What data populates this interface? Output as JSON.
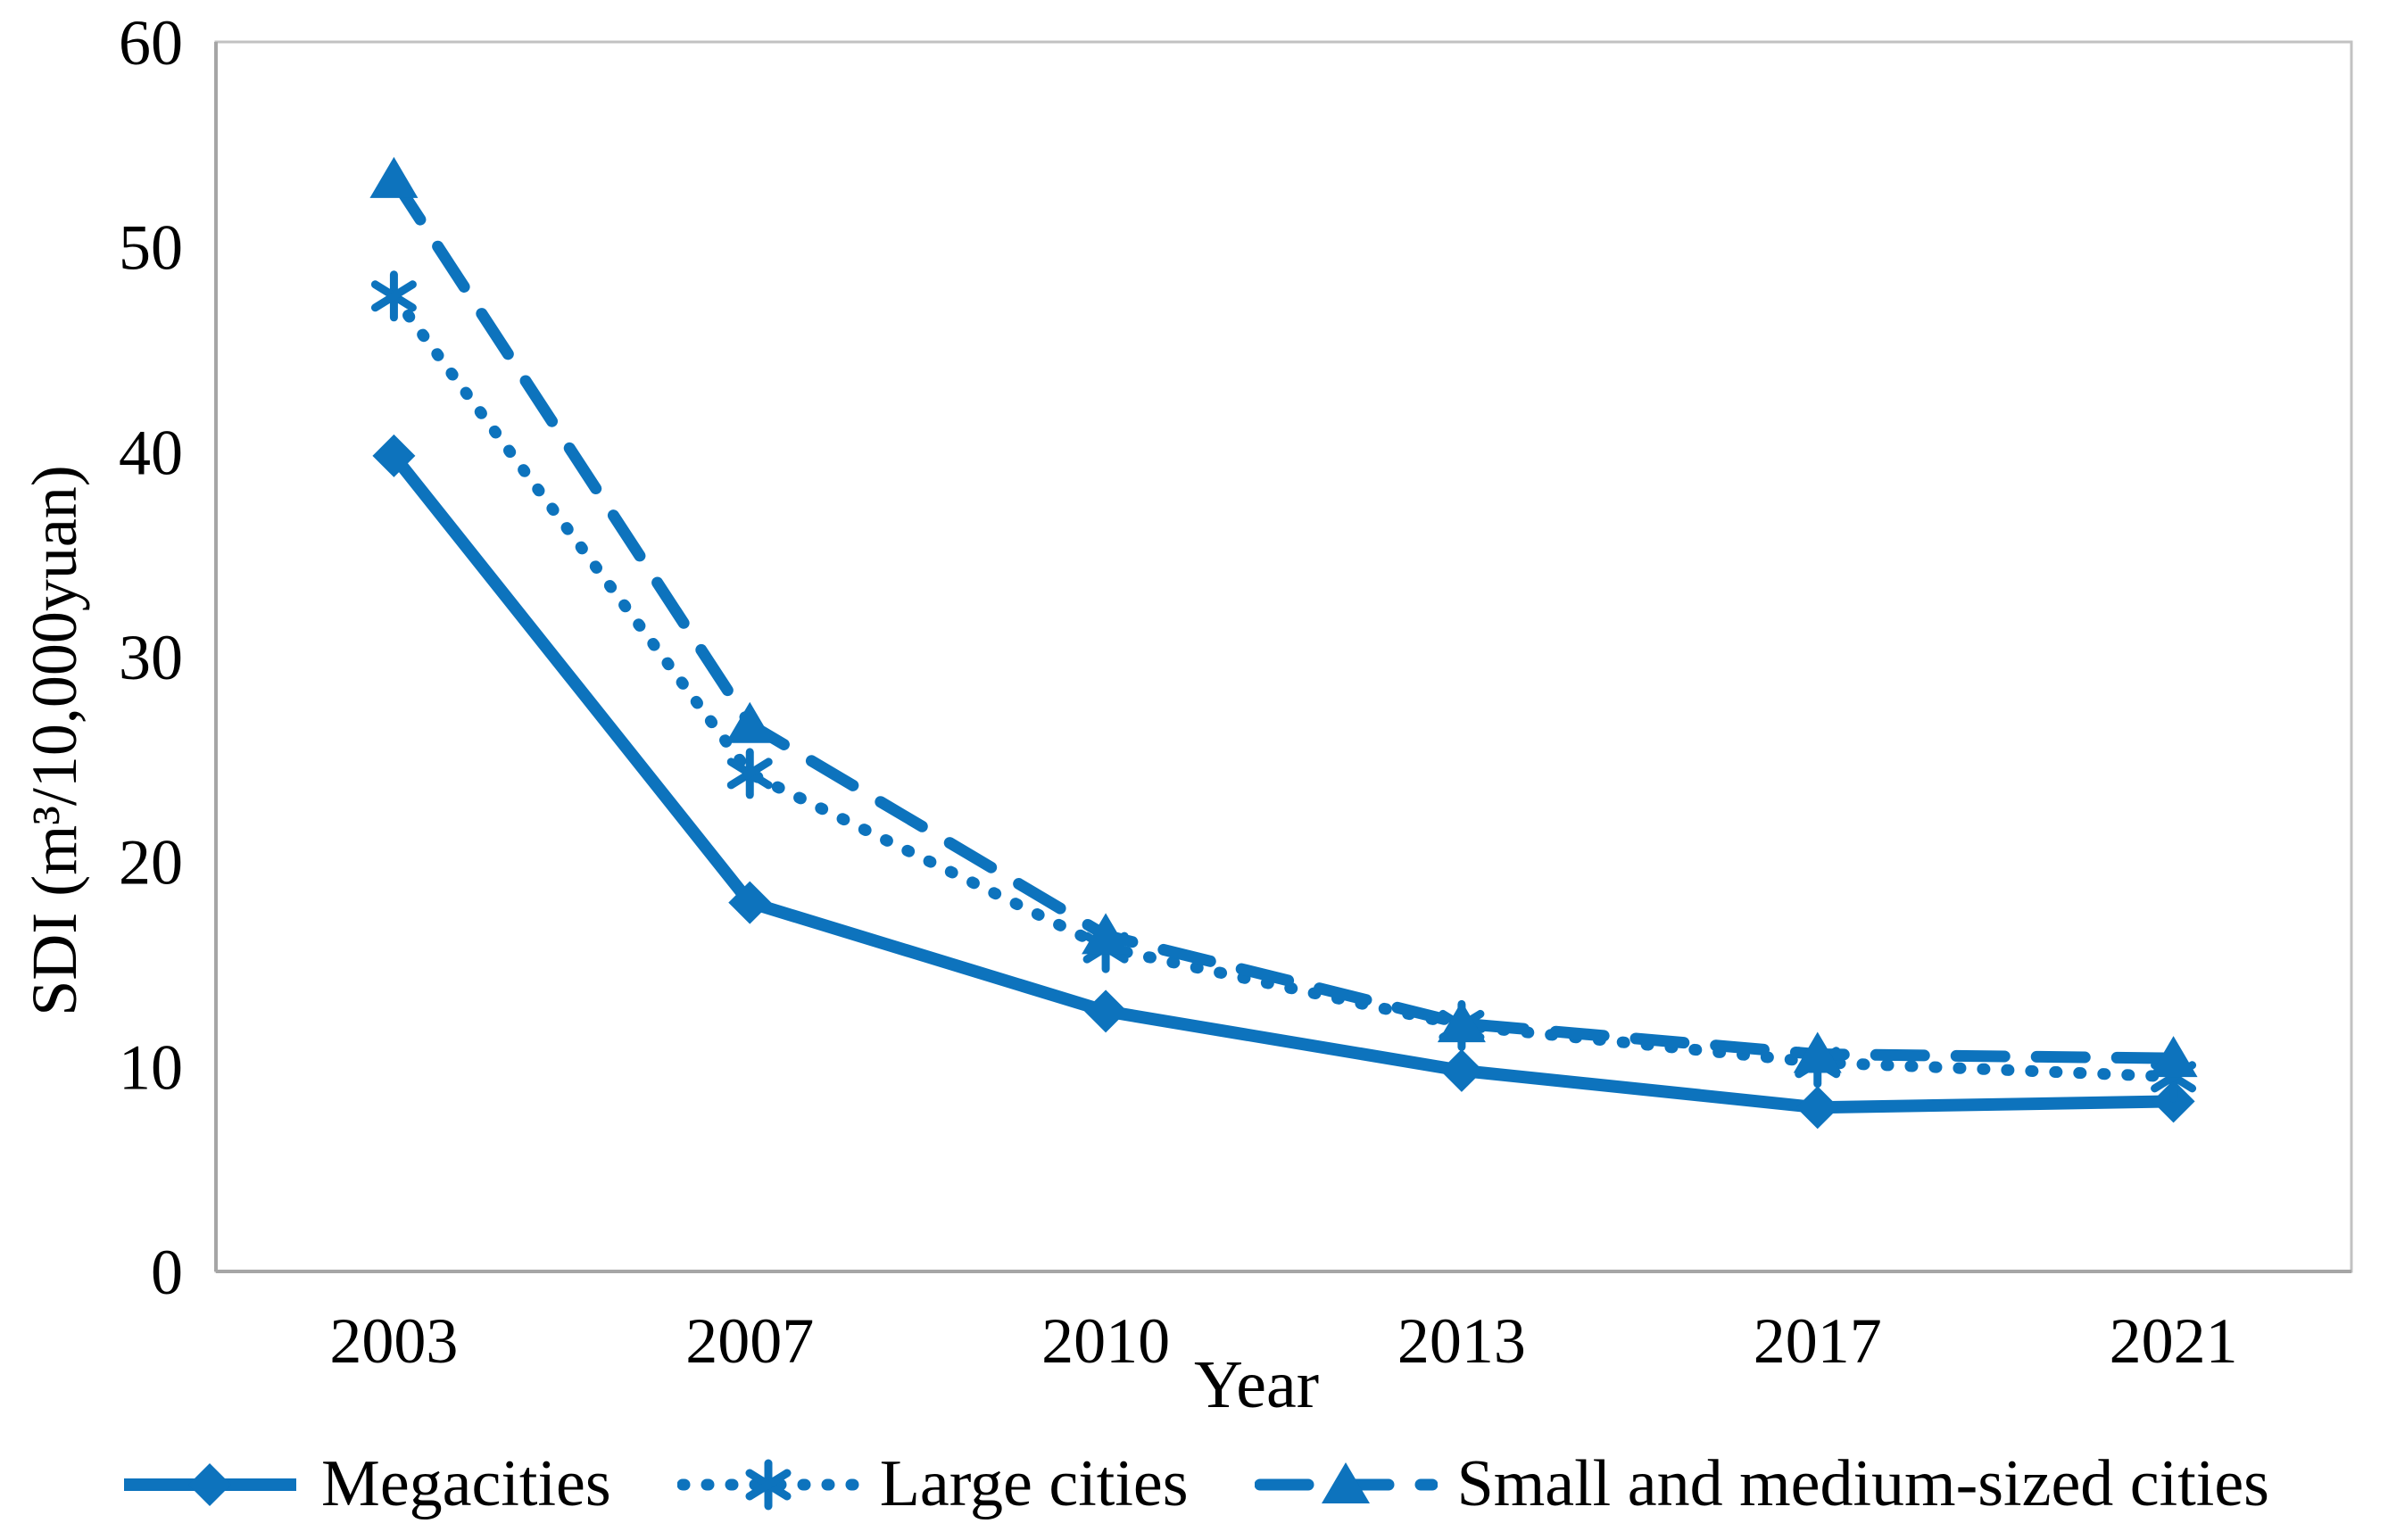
{
  "chart_data": {
    "type": "line",
    "title": "",
    "xlabel": "Year",
    "ylabel": "SDI (m³/10,000yuan)",
    "categories": [
      "2003",
      "2007",
      "2010",
      "2013",
      "2017",
      "2021"
    ],
    "series": [
      {
        "name": "Megacities",
        "marker": "diamond",
        "line_style": "solid",
        "values": [
          39.8,
          18.0,
          12.7,
          9.8,
          8.0,
          8.3
        ]
      },
      {
        "name": "Large cities",
        "marker": "asterisk",
        "line_style": "dotted",
        "values": [
          47.6,
          24.3,
          15.8,
          12.0,
          10.2,
          9.5
        ]
      },
      {
        "name": "Small and medium-sized cities",
        "marker": "triangle",
        "line_style": "dashed",
        "values": [
          53.3,
          26.7,
          16.4,
          12.1,
          10.6,
          10.4
        ]
      }
    ],
    "ylim": [
      0,
      60
    ],
    "ytick_step": 10,
    "grid": false,
    "legend_position": "bottom",
    "series_color": "#0d73bd",
    "frame_color": "#c2c2c2",
    "axis_color": "#a6a6a6",
    "text_color": "#000000"
  }
}
